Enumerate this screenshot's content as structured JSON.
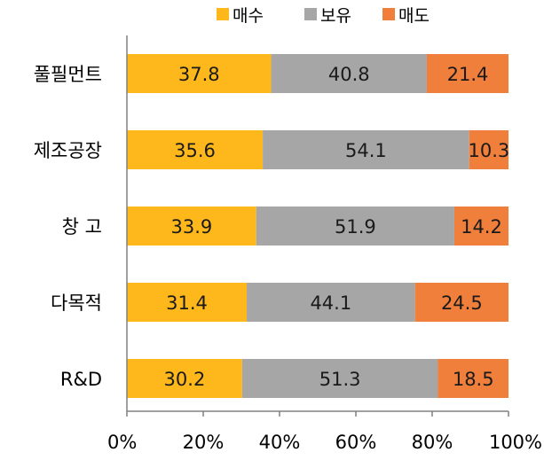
{
  "chart_data": {
    "type": "bar",
    "orientation": "horizontal",
    "stacked": "100%",
    "categories": [
      "풀필먼트",
      "제조공장",
      "창 고",
      "다목적",
      "R&D"
    ],
    "series": [
      {
        "name": "매수",
        "color": "#FFB81C",
        "values": [
          37.8,
          35.6,
          33.9,
          31.4,
          30.2
        ]
      },
      {
        "name": "보유",
        "color": "#A6A6A6",
        "values": [
          40.8,
          54.1,
          51.9,
          44.1,
          51.3
        ]
      },
      {
        "name": "매도",
        "color": "#F07F3C",
        "values": [
          21.4,
          10.3,
          14.2,
          24.5,
          18.5
        ]
      }
    ],
    "xlim": [
      0,
      100
    ],
    "xticks": [
      "0%",
      "20%",
      "40%",
      "60%",
      "80%",
      "100%"
    ],
    "grid": false,
    "legend_position": "top"
  }
}
